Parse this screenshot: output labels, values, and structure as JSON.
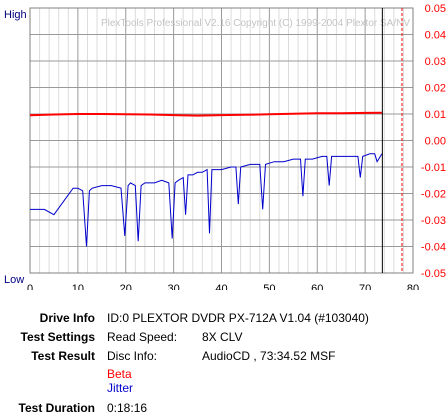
{
  "chart_data": {
    "type": "line",
    "title": "",
    "watermark": "PlexTools Professional V2.16 Copyright (C) 1999-2004 Plextor SA/NV",
    "left_axis_top_label": "High",
    "left_axis_bottom_label": "Low",
    "xlim": [
      0,
      80
    ],
    "x_ticks": [
      "0",
      "10",
      "20",
      "30",
      "40",
      "50",
      "60",
      "70",
      "80"
    ],
    "right_axis": {
      "ylim": [
        -0.05,
        0.05
      ],
      "ticks": [
        "0.05",
        "0.04",
        "0.03",
        "0.02",
        "0.01",
        "0.00",
        "-0.01",
        "-0.02",
        "-0.03",
        "-0.04",
        "-0.05"
      ]
    },
    "grid": true,
    "end_marker_x": 73.6,
    "series": [
      {
        "name": "Beta",
        "color": "#ff0000",
        "axis": "right",
        "x": [
          0,
          5,
          10,
          15,
          20,
          25,
          30,
          35,
          40,
          45,
          50,
          55,
          60,
          65,
          70,
          73.5
        ],
        "values": [
          0.0095,
          0.0098,
          0.01,
          0.01,
          0.0099,
          0.0098,
          0.0096,
          0.0094,
          0.0096,
          0.0097,
          0.0099,
          0.0101,
          0.0103,
          0.0103,
          0.0104,
          0.0105
        ]
      },
      {
        "name": "Jitter",
        "color": "#0000cc",
        "axis": "percent",
        "x": [
          0,
          3,
          5,
          7,
          9,
          10,
          11,
          11.8,
          12.4,
          13,
          15,
          17,
          19,
          19.8,
          20.5,
          21,
          22,
          22.6,
          23.2,
          24,
          26,
          27.5,
          29,
          29.7,
          30.3,
          31,
          32,
          32.5,
          33,
          34,
          35,
          36,
          37,
          37.5,
          38,
          40,
          42,
          43,
          43.5,
          44,
          46,
          48,
          48.6,
          49.2,
          51,
          53,
          55,
          56.5,
          57,
          57.5,
          59,
          61,
          62,
          62.5,
          63,
          65,
          67,
          68.5,
          69,
          69.5,
          71,
          72,
          72.5,
          73.5
        ],
        "values": [
          24,
          24,
          22,
          27,
          32,
          32,
          31,
          10,
          31,
          32,
          33,
          33,
          32,
          14,
          33,
          34,
          33,
          12,
          33,
          34,
          34,
          35,
          34,
          13,
          34,
          35,
          36,
          22,
          37,
          37,
          38,
          38,
          39,
          15,
          39,
          39,
          40,
          40,
          26,
          40,
          41,
          41,
          24,
          41,
          42,
          42,
          43,
          43,
          29,
          43,
          43,
          44,
          44,
          33,
          44,
          44,
          44,
          44,
          36,
          44,
          45,
          45,
          42,
          45
        ]
      }
    ]
  },
  "info": {
    "drive_label": "Drive Info",
    "drive_value": "ID:0 PLEXTOR DVDR PX-712A V1.04 (#103040)",
    "settings_label": "Test Settings",
    "settings_key": "Read Speed:",
    "settings_value": "8X CLV",
    "result_label": "Test Result",
    "result_key": "Disc Info:",
    "result_value": "AudioCD , 73:34.52 MSF",
    "legend_beta": "Beta",
    "legend_jitter": "Jitter",
    "duration_label": "Test Duration",
    "duration_value": "0:18:16"
  }
}
